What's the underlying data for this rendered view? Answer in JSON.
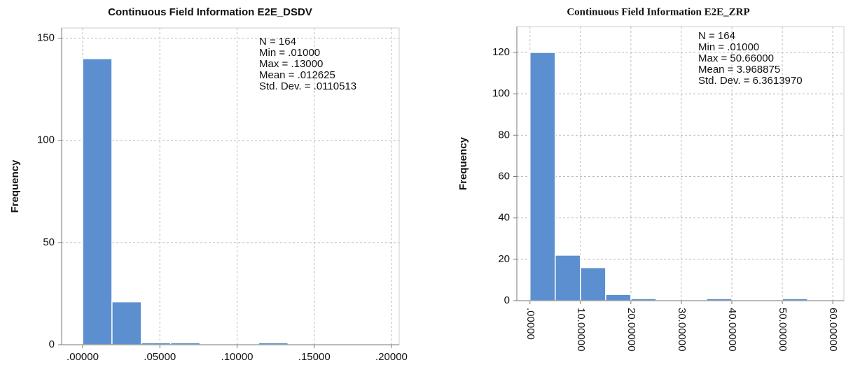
{
  "chart_data": [
    {
      "type": "histogram",
      "title": "Continuous Field Information E2E_DSDV",
      "y_label": "Frequency",
      "annotations": [
        "N = 164",
        "Min = .01000",
        "Max = .13000",
        "Mean = .012625",
        "Std. Dev. = .0110513"
      ],
      "bins": [
        0,
        0.019,
        0.038,
        0.057,
        0.076,
        0.095,
        0.114,
        0.133
      ],
      "values": [
        140,
        21,
        1,
        1,
        0,
        0,
        1
      ],
      "color": "#5b8fd0",
      "xlim": [
        -0.0136,
        0.205
      ],
      "xticks": [
        {
          "value": 0,
          "label": ".00000"
        },
        {
          "value": 0.05,
          "label": ".05000"
        },
        {
          "value": 0.1,
          "label": ".10000"
        },
        {
          "value": 0.15,
          "label": ".15000"
        },
        {
          "value": 0.2,
          "label": ".20000"
        }
      ],
      "ylim": [
        0,
        155
      ],
      "yticks": [
        0,
        50,
        100,
        150
      ],
      "grid": true
    },
    {
      "type": "histogram",
      "title": "Continuous Field Information E2E_ZRP",
      "y_label": "Frequency",
      "annotations": [
        "N = 164",
        "Min = .01000",
        "Max = 50.66000",
        "Mean = 3.968875",
        "Std. Dev. = 6.3613970"
      ],
      "bins": [
        0,
        5,
        10,
        15,
        20,
        25,
        30,
        35,
        40,
        45,
        50,
        55
      ],
      "values": [
        120,
        22,
        16,
        3,
        1,
        0,
        0,
        1,
        0,
        0,
        1
      ],
      "color": "#5b8fd0",
      "xlim": [
        -2.6,
        62.2
      ],
      "xticks": [
        {
          "value": 0,
          "label": ".00000"
        },
        {
          "value": 10,
          "label": "10.00000"
        },
        {
          "value": 20,
          "label": "20.00000"
        },
        {
          "value": 30,
          "label": "30.00000"
        },
        {
          "value": 40,
          "label": "40.00000"
        },
        {
          "value": 50,
          "label": "50.00000"
        },
        {
          "value": 60,
          "label": "60.00000"
        }
      ],
      "ylim": [
        0,
        132.5
      ],
      "yticks": [
        0,
        20,
        40,
        60,
        80,
        100,
        120
      ],
      "grid": true
    }
  ]
}
